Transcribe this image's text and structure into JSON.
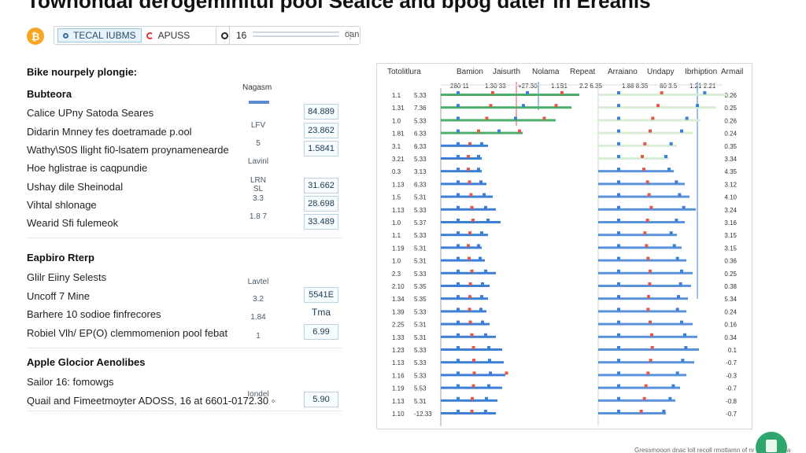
{
  "header": {
    "title": "Towhondal derogeminitul pool Seaice and bpog dater in Ereanis"
  },
  "toolbar": {
    "app_icon_glyph": "₿",
    "tabs": [
      {
        "label": "TECAL IUBMS",
        "icon": "circle-dot-icon",
        "active": true
      },
      {
        "label": "APUSS",
        "icon": "refresh-icon",
        "active": false
      }
    ],
    "search": {
      "prefix": "O",
      "value": "16",
      "menu_glyph": "⋮"
    },
    "side_label": "öan"
  },
  "left_panel": {
    "title": "Bike nourpely plongie:",
    "column_caption": "Nagasm",
    "sections": [
      {
        "heading": "Bubteora",
        "rows": [
          {
            "label": "Calice UPny Satoda Seares",
            "mid": "",
            "value": "84.889"
          },
          {
            "label": "Didarin Mnney fes doetramade p.ool",
            "mid": "LFV",
            "value": "23.862"
          },
          {
            "label": "Wathy\\S0S llight fi0-lsatem proynamenearde",
            "mid": "5",
            "value": "1.5841"
          },
          {
            "label": "Hoe hglistrae is caqpundie",
            "mid": "Lavinl",
            "value": ""
          },
          {
            "label": "Ushay dile Sheinodal",
            "mid": "LRN SL",
            "value": "31.662"
          },
          {
            "label": "Vihtal shlonage",
            "mid": "3.3",
            "value": "28.698"
          },
          {
            "label": "Wearid Sfi fulemeok",
            "mid": "1.8 7",
            "value": "33.489"
          }
        ]
      },
      {
        "heading": "Eapbiro Rterp",
        "rows": [
          {
            "label": "Glilr Eiiny Selests",
            "mid": "Lavtel",
            "value": ""
          },
          {
            "label": "Uncoff 7 Mine",
            "mid": "3.2",
            "value": "5541E"
          },
          {
            "label": "Barhere 10 sodioe finfrecores",
            "mid": "1.84",
            "value": "Tma"
          },
          {
            "label": "Robiel Vlh/ EP(O) clemmomenion pool febat",
            "mid": "1",
            "value": "6.99"
          }
        ]
      },
      {
        "heading": "Apple Glocior Aenolibes",
        "rows": [
          {
            "label": "Sailor 16: fomowgs",
            "mid": "",
            "value": ""
          },
          {
            "label": "Quail and Fimeetmoyter ADOSS, 16 at 6601-0172.30 ◦",
            "mid": "Iondel",
            "value": "5.90"
          }
        ]
      }
    ]
  },
  "chart_data": {
    "type": "bar",
    "column_headers": [
      "Totolitlura",
      "Bamion",
      "Jaisurth",
      "Nolama",
      "Repeat",
      "Arraiano",
      "Undapy",
      "Ibrhiption",
      "Armail"
    ],
    "top_ticks": [
      "280 11",
      "1.30 33",
      "+27.30",
      "1.1S1",
      "2.2 6.35",
      "1.88 8.35",
      "80 3.5",
      "1.21 2.21"
    ],
    "row_index": [
      "1.1",
      "1.31",
      "1.0",
      "1.81",
      "3.1",
      "3.21",
      "0.3",
      "1.13",
      "1.5",
      "1.13",
      "1.0",
      "1.1",
      "1.19",
      "1.0",
      "2.3",
      "2.10",
      "1.34",
      "1.39",
      "2.25",
      "1.33",
      "1.23",
      "1.13",
      "1.16",
      "1.19",
      "1.13",
      "1.10"
    ],
    "left_values": [
      "5.33",
      "7.36",
      "5.33",
      "6.33",
      "6.33",
      "5.33",
      "3.13",
      "6.33",
      "5.31",
      "5.33",
      "5.37",
      "5.33",
      "5.31",
      "5.31",
      "5.33",
      "5.35",
      "5.35",
      "5.33",
      "5.31",
      "5.31",
      "5.33",
      "5.33",
      "5.33",
      "5.53",
      "5.31",
      "-12.33"
    ],
    "right_values": [
      "0.26",
      "0.25",
      "0.26",
      "0.24",
      "0.35",
      "3.34",
      "4.35",
      "3.12",
      "4.10",
      "3.24",
      "3.16",
      "3.15",
      "3.15",
      "0.36",
      "0.25",
      "0.38",
      "5.34",
      "0.24",
      "0.16",
      "0.34",
      "0.1",
      "-0.7",
      "-0.3",
      "-0.7",
      "-0.8",
      "-0.7"
    ],
    "bar_lengths": [
      176,
      166,
      146,
      104,
      60,
      52,
      52,
      58,
      66,
      70,
      76,
      60,
      52,
      56,
      70,
      62,
      60,
      58,
      62,
      70,
      78,
      80,
      82,
      78,
      72,
      70
    ],
    "right_bar_lengths": [
      164,
      150,
      130,
      120,
      100,
      90,
      96,
      110,
      116,
      124,
      110,
      100,
      106,
      112,
      120,
      118,
      114,
      112,
      120,
      126,
      128,
      122,
      112,
      104,
      98,
      86
    ],
    "colors": {
      "primary": "#3d7fd6",
      "secondary": "#4caf6a",
      "accent": "#e05a4a"
    }
  },
  "footer": {
    "status": "Gressmooon dnac loll recoll rmotlamn of nr on ovnonnia"
  }
}
